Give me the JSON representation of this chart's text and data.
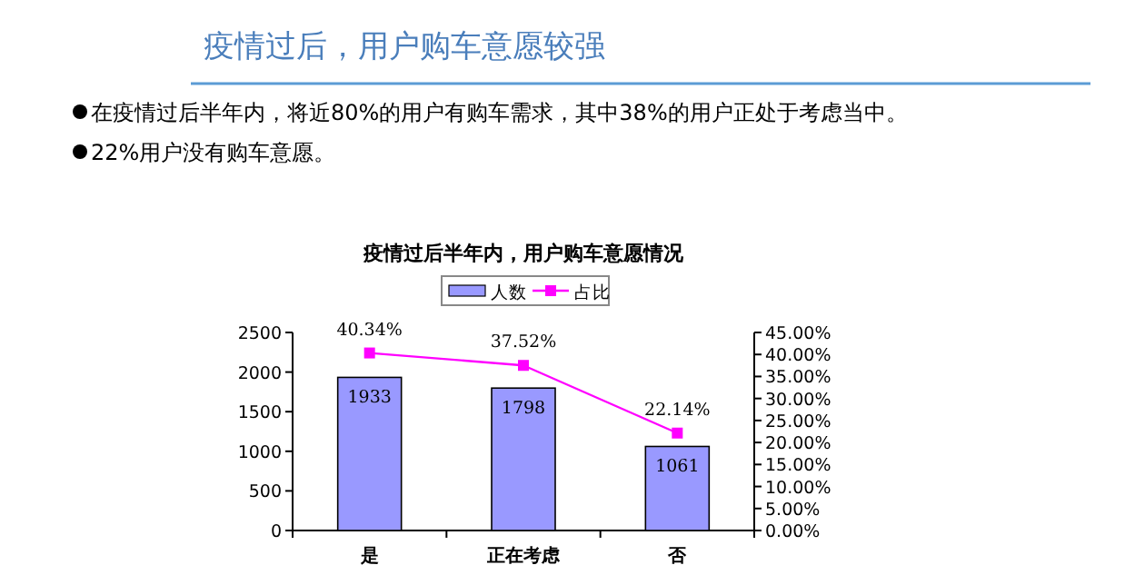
{
  "chart_data": {
    "type": "bar",
    "title": "疫情过后半年内，用户购车意愿情况",
    "annotations": [
      "疫情过后，用户购车意愿较强",
      "在疫情过后半年内，将近80%的用户有购车需求，其中38%的用户正处于考虑当中。",
      "22%用户没有购车意愿。"
    ],
    "categories": [
      "是",
      "正在考虑",
      "否"
    ],
    "series": [
      {
        "name": "人数",
        "color": "#9999ff",
        "values": [
          1933,
          1798,
          1061
        ],
        "value_labels": [
          "1933",
          "1798",
          "1061"
        ]
      },
      {
        "name": "占比",
        "type": "line",
        "axis": "y2",
        "color": "#ff00ff",
        "marker": "square",
        "values": [
          40.34,
          37.52,
          22.14
        ],
        "value_labels": [
          "40.34%",
          "37.52%",
          "22.14%"
        ]
      }
    ],
    "ylim": [
      0,
      2500
    ],
    "yticks": [
      0,
      500,
      1000,
      1500,
      2000,
      2500
    ],
    "y2lim": [
      0,
      45
    ],
    "y2ticks": [
      {
        "value": 0,
        "label": "0.00%"
      },
      {
        "value": 5,
        "label": "5.00%"
      },
      {
        "value": 10,
        "label": "10.00%"
      },
      {
        "value": 15,
        "label": "15.00%"
      },
      {
        "value": 20,
        "label": "20.00%"
      },
      {
        "value": 25,
        "label": "25.00%"
      },
      {
        "value": 30,
        "label": "30.00%"
      },
      {
        "value": 35,
        "label": "35.00%"
      },
      {
        "value": 40,
        "label": "40.00%"
      },
      {
        "value": 45,
        "label": "45.00%"
      }
    ],
    "legend": "top"
  }
}
